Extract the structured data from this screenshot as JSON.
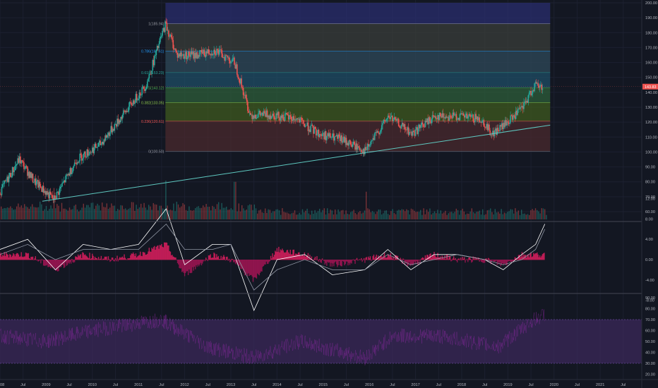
{
  "chart_data": [
    {
      "type": "candlestick",
      "pane": "price",
      "x_ticks": [
        "2008",
        "Jul",
        "2009",
        "Jul",
        "2010",
        "Jul",
        "2011",
        "Jul",
        "2012",
        "Jul",
        "2013",
        "Jul",
        "2014",
        "Jul",
        "2015",
        "Jul",
        "2016",
        "Jul",
        "2017",
        "Jul",
        "2018",
        "Jul",
        "2019",
        "Jul",
        "2020",
        "Jul",
        "2021",
        "Jul"
      ],
      "x_range": [
        "2008-01",
        "2021-12"
      ],
      "y_ticks": [
        "200.00",
        "190.00",
        "180.00",
        "170.00",
        "160.00",
        "150.00",
        "140.00",
        "130.00",
        "120.00",
        "110.00",
        "100.00",
        "90.00",
        "80.00",
        "70.00",
        "60.00"
      ],
      "ylim": [
        55,
        200
      ],
      "last_price": 143.83,
      "last_price_label": "143.83",
      "grid": true,
      "background": "#131722",
      "up_color": "#26a69a",
      "down_color": "#ef5350",
      "price_path": [
        [
          "2008-01",
          73
        ],
        [
          "2008-06",
          95
        ],
        [
          "2008-10",
          80
        ],
        [
          "2009-03",
          68
        ],
        [
          "2009-09",
          95
        ],
        [
          "2010-03",
          105
        ],
        [
          "2010-09",
          125
        ],
        [
          "2011-03",
          145
        ],
        [
          "2011-08",
          185.94
        ],
        [
          "2011-11",
          165
        ],
        [
          "2012-04",
          165
        ],
        [
          "2012-09",
          168
        ],
        [
          "2013-02",
          160
        ],
        [
          "2013-06",
          125
        ],
        [
          "2013-12",
          125
        ],
        [
          "2014-06",
          122
        ],
        [
          "2014-12",
          112
        ],
        [
          "2015-06",
          108
        ],
        [
          "2015-12",
          100.5
        ],
        [
          "2016-06",
          124
        ],
        [
          "2016-12",
          112
        ],
        [
          "2017-06",
          124
        ],
        [
          "2017-12",
          124
        ],
        [
          "2018-06",
          122
        ],
        [
          "2018-09",
          112
        ],
        [
          "2019-01",
          120
        ],
        [
          "2019-05",
          130
        ],
        [
          "2019-08",
          145
        ],
        [
          "2019-10",
          143.83
        ]
      ],
      "fibonacci": {
        "levels": [
          {
            "ratio": "1",
            "value": 185.94,
            "label": "1(185.94)"
          },
          {
            "ratio": "0.786",
            "value": 167.61,
            "label": "0.786(167.61)"
          },
          {
            "ratio": "0.618",
            "value": 153.23,
            "label": "0.618(153.23)"
          },
          {
            "ratio": "0.5",
            "value": 143.12,
            "label": "0.5(143.12)"
          },
          {
            "ratio": "0.382",
            "value": 133.05,
            "label": "0.382(133.05)"
          },
          {
            "ratio": "0.236",
            "value": 120.61,
            "label": "0.236(120.61)"
          },
          {
            "ratio": "0",
            "value": 100.5,
            "label": "0(100.50)"
          }
        ],
        "extension_top": 200,
        "x_start": "2011-08",
        "x_end": "2019-12",
        "colors": [
          "#2a2e6e",
          "#3a3d3a",
          "#2f4a5a",
          "#1f4d66",
          "#2e5e3a",
          "#3f5a1f",
          "#4a2a2e"
        ]
      },
      "trendline": {
        "from": [
          "2008-12",
          67
        ],
        "to": [
          "2019-12",
          118
        ],
        "color": "#5ec8c0"
      }
    },
    {
      "type": "bar",
      "pane": "volume",
      "description_values": "volume histogram overlay at bottom of price pane",
      "spikes": [
        [
          "2011-08",
          1.0
        ],
        [
          "2013-02",
          0.95
        ],
        [
          "2009-03",
          0.7
        ],
        [
          "2015-12",
          0.55
        ]
      ]
    },
    {
      "type": "line",
      "pane": "macd",
      "y_ticks": [
        "12.00",
        "8.00",
        "4.00",
        "0.00",
        "-4.00",
        "-8.00"
      ],
      "ylim": [
        -12,
        13
      ],
      "series": [
        {
          "values": [
            [
              2008.0,
              2
            ],
            [
              2008.6,
              4
            ],
            [
              2009.2,
              -2
            ],
            [
              2009.8,
              3
            ],
            [
              2010.4,
              2
            ],
            [
              2011.0,
              3
            ],
            [
              2011.6,
              10
            ],
            [
              2012.0,
              -1
            ],
            [
              2012.6,
              3
            ],
            [
              2013.0,
              3
            ],
            [
              2013.5,
              -10
            ],
            [
              2014.0,
              0
            ],
            [
              2014.6,
              1
            ],
            [
              2015.2,
              -3
            ],
            [
              2015.9,
              -2
            ],
            [
              2016.4,
              2
            ],
            [
              2016.9,
              -2
            ],
            [
              2017.4,
              1
            ],
            [
              2017.9,
              1
            ],
            [
              2018.5,
              0
            ],
            [
              2018.9,
              -2
            ],
            [
              2019.3,
              1
            ],
            [
              2019.6,
              3
            ],
            [
              2019.8,
              7
            ]
          ],
          "color": "#ffffff"
        },
        {
          "values": [
            [
              2008.0,
              1
            ],
            [
              2008.6,
              3
            ],
            [
              2009.2,
              0
            ],
            [
              2009.8,
              2
            ],
            [
              2010.4,
              2
            ],
            [
              2011.0,
              2
            ],
            [
              2011.6,
              7
            ],
            [
              2012.0,
              2
            ],
            [
              2012.6,
              2
            ],
            [
              2013.0,
              3
            ],
            [
              2013.5,
              -6
            ],
            [
              2014.0,
              -2
            ],
            [
              2014.6,
              0
            ],
            [
              2015.2,
              -2
            ],
            [
              2015.9,
              -2
            ],
            [
              2016.4,
              1
            ],
            [
              2016.9,
              -1
            ],
            [
              2017.4,
              0
            ],
            [
              2017.9,
              1
            ],
            [
              2018.5,
              0
            ],
            [
              2018.9,
              -1
            ],
            [
              2019.3,
              0
            ],
            [
              2019.6,
              2
            ],
            [
              2019.8,
              6
            ]
          ],
          "color": "#8f95a3"
        }
      ]
    },
    {
      "type": "area",
      "pane": "rsi",
      "y_ticks": [
        "90.00",
        "80.00",
        "70.00",
        "60.00",
        "50.00",
        "40.00",
        "30.00",
        "20.00"
      ],
      "ylim": [
        15,
        97
      ],
      "band": [
        30,
        70
      ],
      "band_color": "#3d2a5c",
      "values": [
        [
          2008.0,
          55
        ],
        [
          2009.0,
          50
        ],
        [
          2010.0,
          60
        ],
        [
          2011.5,
          70
        ],
        [
          2012.5,
          45
        ],
        [
          2013.5,
          35
        ],
        [
          2014.5,
          50
        ],
        [
          2015.9,
          35
        ],
        [
          2016.5,
          55
        ],
        [
          2017.5,
          55
        ],
        [
          2018.8,
          45
        ],
        [
          2019.5,
          68
        ],
        [
          2019.8,
          75
        ]
      ]
    }
  ]
}
